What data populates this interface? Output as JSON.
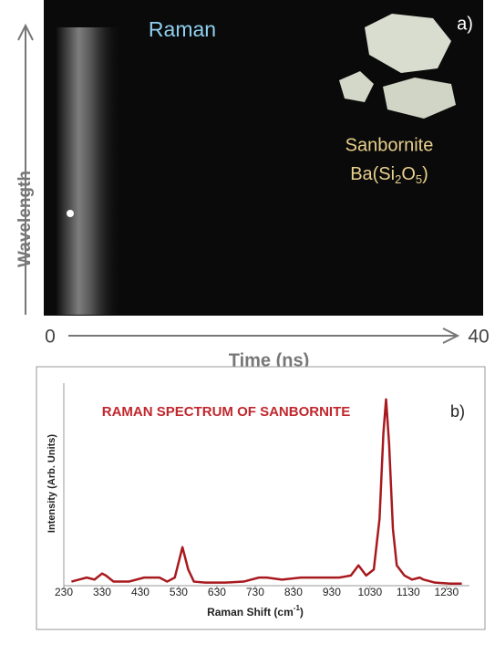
{
  "panel_a": {
    "label": "a)",
    "signal": "Raman",
    "mineral": "Sanbornite",
    "formula": [
      "Ba(Si",
      "2",
      "O",
      "5",
      ")"
    ],
    "y_axis_label": "Wavelength",
    "x_axis_label": "Time (ns)",
    "x_start": 0,
    "x_end": 40
  },
  "chart_data": {
    "type": "line",
    "title": "RAMAN SPECTRUM OF SANBORNITE",
    "panel_label": "b)",
    "x_label": [
      "Raman Shift (cm",
      "-1",
      ")"
    ],
    "y_label": "Intensity (Arb. Units)",
    "xlim": [
      230,
      1290
    ],
    "ylim": [
      0,
      100
    ],
    "xticks": [
      230,
      330,
      430,
      530,
      630,
      730,
      830,
      930,
      1030,
      1130,
      1230
    ],
    "x": [
      250,
      270,
      290,
      310,
      330,
      340,
      360,
      400,
      440,
      460,
      480,
      500,
      520,
      540,
      555,
      570,
      600,
      650,
      700,
      740,
      760,
      800,
      850,
      900,
      950,
      980,
      1000,
      1020,
      1040,
      1055,
      1065,
      1072,
      1080,
      1090,
      1100,
      1120,
      1140,
      1160,
      1170,
      1200,
      1240,
      1270
    ],
    "series": [
      {
        "name": "Sanbornite",
        "color": "#a8191e",
        "values": [
          2,
          3,
          4,
          3,
          6,
          5,
          2,
          2,
          4,
          4,
          4,
          2,
          4,
          19,
          8,
          2,
          1.5,
          1.5,
          2,
          4,
          4,
          3,
          4,
          4,
          4,
          5,
          10,
          5,
          8,
          33,
          75,
          92,
          70,
          28,
          10,
          5,
          3,
          4,
          3,
          1.5,
          1,
          1
        ]
      }
    ]
  }
}
